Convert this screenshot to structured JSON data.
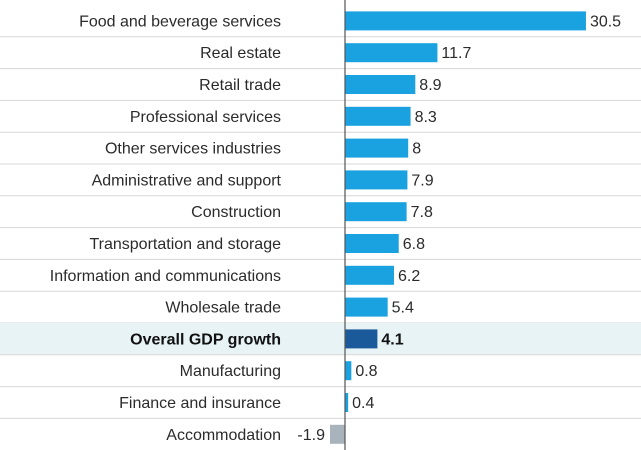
{
  "chart_data": {
    "type": "bar",
    "orientation": "horizontal",
    "title": "",
    "xlabel": "",
    "ylabel": "",
    "xlim": [
      -1.9,
      30.5
    ],
    "grid": false,
    "highlight_category": "Overall GDP growth",
    "categories": [
      "Food and beverage services",
      "Real estate",
      "Retail trade",
      "Professional services",
      "Other services industries",
      "Administrative and support",
      "Construction",
      "Transportation and storage",
      "Information and communications",
      "Wholesale trade",
      "Overall GDP growth",
      "Manufacturing",
      "Finance and insurance",
      "Accommodation"
    ],
    "values": [
      30.5,
      11.7,
      8.9,
      8.3,
      8,
      7.9,
      7.8,
      6.8,
      6.2,
      5.4,
      4.1,
      0.8,
      0.4,
      -1.9
    ],
    "value_labels": [
      "30.5",
      "11.7",
      "8.9",
      "8.3",
      "8",
      "7.9",
      "7.8",
      "6.8",
      "6.2",
      "5.4",
      "4.1",
      "0.8",
      "0.4",
      "-1.9"
    ],
    "colors": {
      "positive": "#1aa1df",
      "highlight": "#1a5a9a",
      "negative": "#a9b3bb",
      "highlight_row_bg": "#e8f3f6",
      "separator": "#d7d7d7",
      "axis": "#555555"
    }
  }
}
